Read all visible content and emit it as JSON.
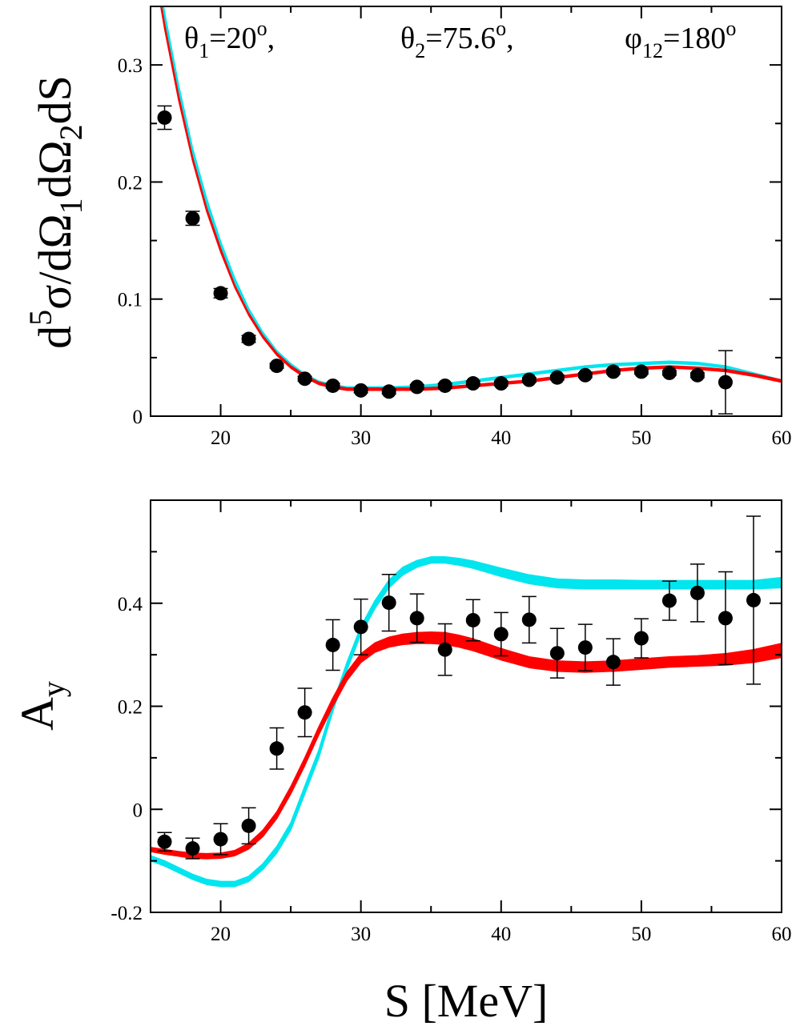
{
  "chart_data": [
    {
      "type": "line",
      "ylabel": {
        "main": "d",
        "sup": "5",
        "rest": [
          {
            "t": "σ/dΩ"
          },
          {
            "t": "1",
            "sub": true
          },
          {
            "t": "dΩ"
          },
          {
            "t": "2",
            "sub": true
          },
          {
            "t": "dS"
          }
        ]
      },
      "annotations": [
        {
          "sym": "θ",
          "sub": "1",
          "rest": "=20",
          "sup": "o",
          "tail": ","
        },
        {
          "sym": "θ",
          "sub": "2",
          "rest": "=75.6",
          "sup": "o",
          "tail": ","
        },
        {
          "sym": "φ",
          "sub": "12",
          "rest": "=180",
          "sup": "o",
          "tail": ""
        }
      ],
      "xlim": [
        15,
        60
      ],
      "ylim": [
        0,
        0.35
      ],
      "xticks": [
        20,
        30,
        40,
        50,
        60
      ],
      "xtick_labels": [
        "20",
        "30",
        "40",
        "50",
        "60"
      ],
      "yticks": [
        0,
        0.1,
        0.2,
        0.3
      ],
      "ytick_labels": [
        "0",
        "0.1",
        "0.2",
        "0.3"
      ],
      "colors": {
        "band1": "#00e5ee",
        "band2": "#ff0000",
        "points": "#000000"
      },
      "series": [
        {
          "style": "band",
          "color": "#00e5ee",
          "x": [
            15.5,
            16,
            17,
            18,
            19,
            20,
            21,
            22,
            23,
            24,
            25,
            26,
            27,
            28,
            29,
            30,
            32,
            34,
            36,
            38,
            40,
            42,
            44,
            46,
            48,
            50,
            52,
            54,
            56,
            58,
            60
          ],
          "lower": [
            0.37,
            0.335,
            0.275,
            0.222,
            0.179,
            0.143,
            0.113,
            0.088,
            0.069,
            0.053,
            0.042,
            0.034,
            0.028,
            0.025,
            0.023,
            0.023,
            0.023,
            0.024,
            0.026,
            0.029,
            0.032,
            0.035,
            0.038,
            0.041,
            0.043,
            0.044,
            0.045,
            0.044,
            0.041,
            0.035,
            0.029
          ],
          "upper": [
            0.38,
            0.345,
            0.283,
            0.229,
            0.186,
            0.149,
            0.118,
            0.092,
            0.072,
            0.056,
            0.045,
            0.036,
            0.03,
            0.027,
            0.025,
            0.025,
            0.025,
            0.026,
            0.028,
            0.031,
            0.034,
            0.037,
            0.04,
            0.043,
            0.045,
            0.046,
            0.047,
            0.046,
            0.043,
            0.037,
            0.031
          ]
        },
        {
          "style": "band",
          "color": "#ff0000",
          "x": [
            15.5,
            16,
            17,
            18,
            19,
            20,
            21,
            22,
            23,
            24,
            25,
            26,
            27,
            28,
            29,
            30,
            32,
            34,
            36,
            38,
            40,
            42,
            44,
            46,
            48,
            50,
            52,
            54,
            56,
            58,
            60
          ],
          "lower": [
            0.366,
            0.331,
            0.27,
            0.218,
            0.175,
            0.14,
            0.11,
            0.086,
            0.067,
            0.052,
            0.041,
            0.033,
            0.027,
            0.024,
            0.022,
            0.022,
            0.022,
            0.022,
            0.023,
            0.025,
            0.027,
            0.029,
            0.032,
            0.035,
            0.038,
            0.04,
            0.041,
            0.04,
            0.038,
            0.034,
            0.029
          ],
          "upper": [
            0.37,
            0.335,
            0.274,
            0.221,
            0.178,
            0.143,
            0.112,
            0.088,
            0.069,
            0.054,
            0.043,
            0.035,
            0.029,
            0.026,
            0.024,
            0.024,
            0.024,
            0.024,
            0.025,
            0.027,
            0.029,
            0.031,
            0.034,
            0.037,
            0.04,
            0.042,
            0.043,
            0.042,
            0.04,
            0.036,
            0.031
          ]
        },
        {
          "style": "points",
          "color": "#000000",
          "x": [
            16,
            18,
            20,
            22,
            24,
            26,
            28,
            30,
            32,
            34,
            36,
            38,
            40,
            42,
            44,
            46,
            48,
            50,
            52,
            54,
            56
          ],
          "y": [
            0.255,
            0.169,
            0.105,
            0.066,
            0.043,
            0.032,
            0.026,
            0.022,
            0.021,
            0.025,
            0.026,
            0.028,
            0.028,
            0.031,
            0.033,
            0.035,
            0.038,
            0.038,
            0.037,
            0.035,
            0.029
          ],
          "err": [
            0.01,
            0.006,
            0.004,
            0.003,
            0.002,
            0.002,
            0.002,
            0.002,
            0.002,
            0.002,
            0.002,
            0.002,
            0.002,
            0.002,
            0.002,
            0.002,
            0.002,
            0.002,
            0.002,
            0.002,
            0.027
          ]
        }
      ]
    },
    {
      "type": "line",
      "ylabel": {
        "main": "A",
        "sub": "y"
      },
      "xlabel": "S [MeV]",
      "xlim": [
        15,
        60
      ],
      "ylim": [
        -0.2,
        0.6
      ],
      "xticks": [
        20,
        30,
        40,
        50,
        60
      ],
      "xtick_labels": [
        "20",
        "30",
        "40",
        "50",
        "60"
      ],
      "yticks": [
        -0.2,
        0,
        0.2,
        0.4
      ],
      "ytick_labels": [
        "-0.2",
        "0",
        "0.2",
        "0.4"
      ],
      "colors": {
        "band1": "#00e5ee",
        "band2": "#ff0000",
        "points": "#000000"
      },
      "series": [
        {
          "style": "band",
          "color": "#00e5ee",
          "x": [
            15,
            16,
            17,
            18,
            19,
            20,
            21,
            22,
            23,
            24,
            25,
            26,
            27,
            28,
            29,
            30,
            31,
            32,
            33,
            34,
            35,
            36,
            37,
            38,
            40,
            42,
            44,
            46,
            48,
            50,
            52,
            54,
            56,
            58,
            60
          ],
          "lower": [
            -0.1,
            -0.11,
            -0.123,
            -0.136,
            -0.146,
            -0.15,
            -0.15,
            -0.14,
            -0.117,
            -0.085,
            -0.04,
            0.03,
            0.1,
            0.19,
            0.27,
            0.34,
            0.39,
            0.43,
            0.455,
            0.47,
            0.478,
            0.478,
            0.474,
            0.468,
            0.452,
            0.438,
            0.43,
            0.428,
            0.428,
            0.428,
            0.428,
            0.428,
            0.428,
            0.428,
            0.43
          ],
          "upper": [
            -0.09,
            -0.1,
            -0.113,
            -0.126,
            -0.136,
            -0.14,
            -0.14,
            -0.13,
            -0.106,
            -0.072,
            -0.026,
            0.045,
            0.115,
            0.205,
            0.285,
            0.355,
            0.405,
            0.445,
            0.47,
            0.483,
            0.49,
            0.49,
            0.487,
            0.482,
            0.468,
            0.455,
            0.447,
            0.445,
            0.445,
            0.444,
            0.444,
            0.444,
            0.444,
            0.444,
            0.45
          ]
        },
        {
          "style": "band",
          "color": "#ff0000",
          "x": [
            15,
            16,
            17,
            18,
            19,
            20,
            21,
            22,
            23,
            24,
            25,
            26,
            27,
            28,
            29,
            30,
            31,
            32,
            33,
            34,
            35,
            36,
            37,
            38,
            40,
            42,
            44,
            46,
            48,
            50,
            52,
            54,
            56,
            58,
            60
          ],
          "lower": [
            -0.082,
            -0.087,
            -0.091,
            -0.095,
            -0.096,
            -0.095,
            -0.09,
            -0.077,
            -0.053,
            -0.018,
            0.03,
            0.085,
            0.145,
            0.2,
            0.25,
            0.285,
            0.305,
            0.315,
            0.32,
            0.322,
            0.322,
            0.32,
            0.315,
            0.308,
            0.29,
            0.275,
            0.268,
            0.266,
            0.268,
            0.272,
            0.276,
            0.278,
            0.28,
            0.285,
            0.295
          ],
          "upper": [
            -0.074,
            -0.078,
            -0.082,
            -0.085,
            -0.086,
            -0.085,
            -0.08,
            -0.066,
            -0.041,
            -0.005,
            0.044,
            0.1,
            0.16,
            0.216,
            0.266,
            0.302,
            0.323,
            0.334,
            0.34,
            0.343,
            0.344,
            0.343,
            0.338,
            0.331,
            0.312,
            0.296,
            0.288,
            0.286,
            0.288,
            0.292,
            0.296,
            0.298,
            0.302,
            0.31,
            0.322
          ]
        },
        {
          "style": "points",
          "color": "#000000",
          "x": [
            16,
            18,
            20,
            22,
            24,
            26,
            28,
            30,
            32,
            34,
            36,
            38,
            40,
            42,
            44,
            46,
            48,
            50,
            52,
            54,
            56,
            58
          ],
          "y": [
            -0.063,
            -0.076,
            -0.058,
            -0.032,
            0.118,
            0.188,
            0.319,
            0.354,
            0.401,
            0.371,
            0.31,
            0.367,
            0.34,
            0.368,
            0.303,
            0.314,
            0.286,
            0.332,
            0.405,
            0.42,
            0.371,
            0.406
          ],
          "err": [
            0.018,
            0.02,
            0.03,
            0.035,
            0.04,
            0.047,
            0.049,
            0.054,
            0.055,
            0.047,
            0.05,
            0.04,
            0.042,
            0.045,
            0.048,
            0.045,
            0.045,
            0.038,
            0.038,
            0.056,
            0.09,
            0.163
          ]
        }
      ]
    }
  ]
}
